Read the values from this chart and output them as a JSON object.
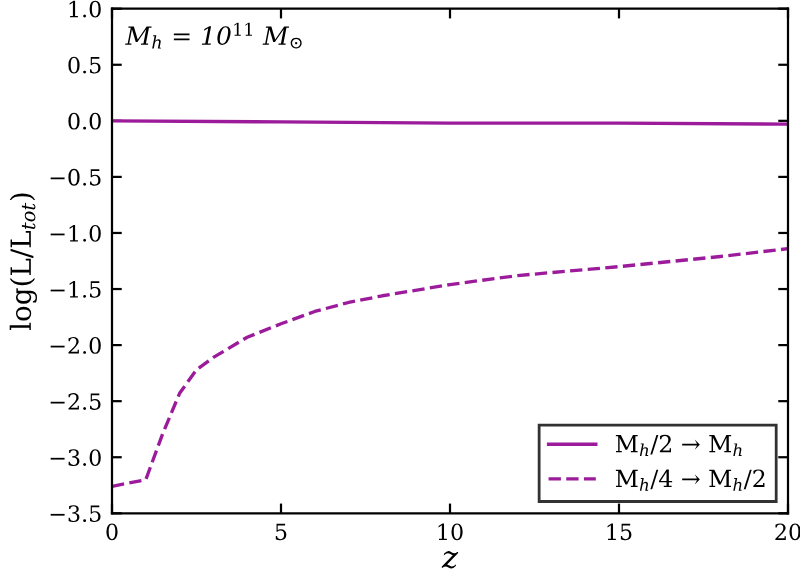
{
  "chart_data": {
    "type": "line",
    "xlabel": "z",
    "ylabel": "log(L/L$_{tot}$)",
    "annotations": [
      "M$_{h}$ = 10$^{11}$ M$_{⊙}$"
    ],
    "xlim": [
      0,
      20
    ],
    "ylim": [
      -3.5,
      1.0
    ],
    "xticks": [
      0,
      5,
      10,
      15,
      20
    ],
    "yticks": [
      {
        "value": -3.5,
        "label": "−3.5"
      },
      {
        "value": -3,
        "label": "−3.0"
      },
      {
        "value": -2.5,
        "label": "−2.5"
      },
      {
        "value": -2,
        "label": "−2.0"
      },
      {
        "value": -1.5,
        "label": "−1.5"
      },
      {
        "value": -1,
        "label": "−1.0"
      },
      {
        "value": -0.5,
        "label": "−0.5"
      },
      {
        "value": 0,
        "label": "0.0"
      },
      0.5,
      {
        "value": 1,
        "label": "1.0"
      }
    ],
    "grid": false,
    "legend": "bottom right",
    "series": [
      {
        "name": "M$_{h}$/2 → M$_{h}$",
        "color": "#9b1b9b",
        "line_style": "solid",
        "x": [
          0,
          5,
          10,
          15,
          20
        ],
        "values": [
          0.0,
          -0.01,
          -0.02,
          -0.02,
          -0.03
        ]
      },
      {
        "name": "M$_{h}$/4 → M$_{h}$/2",
        "color": "#9b1b9b",
        "line_style": "dashed",
        "x": [
          0,
          1,
          1.5,
          2,
          2.5,
          3,
          4,
          5,
          6,
          7,
          8,
          10,
          12,
          15,
          18,
          20
        ],
        "values": [
          -3.26,
          -3.2,
          -2.79,
          -2.43,
          -2.22,
          -2.11,
          -1.93,
          -1.81,
          -1.7,
          -1.62,
          -1.56,
          -1.46,
          -1.38,
          -1.3,
          -1.21,
          -1.14
        ]
      }
    ]
  }
}
